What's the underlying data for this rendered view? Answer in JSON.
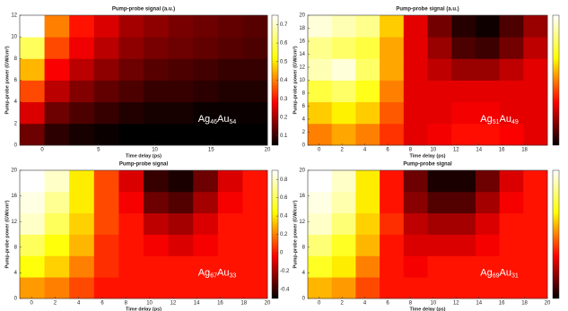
{
  "chart_data": [
    {
      "type": "heatmap",
      "title": "Pump-probe signal (a.u.)",
      "xlabel": "Time delay (ps)",
      "ylabel": "Pump-probe power (GW/cm²)",
      "xlim": [
        -2,
        20
      ],
      "ylim": [
        0,
        12
      ],
      "xticks": [
        0,
        5,
        10,
        15,
        20
      ],
      "yticks": [
        0,
        2,
        4,
        6,
        8,
        10,
        12
      ],
      "zlim": [
        0.05,
        0.75
      ],
      "zticks": [
        0.1,
        0.2,
        0.3,
        0.4,
        0.5,
        0.6,
        0.7
      ],
      "colormap": "hot",
      "annotation": [
        "Ag",
        "46",
        "Au",
        "54"
      ],
      "z": [
        [
          0.15,
          0.09,
          0.07,
          0.06,
          0.05,
          0.05,
          0.05,
          0.05,
          0.05,
          0.05
        ],
        [
          0.25,
          0.15,
          0.12,
          0.1,
          0.08,
          0.07,
          0.07,
          0.06,
          0.06,
          0.06
        ],
        [
          0.35,
          0.22,
          0.17,
          0.14,
          0.12,
          0.1,
          0.1,
          0.09,
          0.08,
          0.08
        ],
        [
          0.45,
          0.28,
          0.22,
          0.18,
          0.15,
          0.13,
          0.12,
          0.11,
          0.1,
          0.1
        ],
        [
          0.6,
          0.35,
          0.27,
          0.22,
          0.18,
          0.16,
          0.15,
          0.14,
          0.13,
          0.12
        ],
        [
          0.75,
          0.4,
          0.3,
          0.25,
          0.2,
          0.18,
          0.16,
          0.15,
          0.14,
          0.13
        ]
      ]
    },
    {
      "type": "heatmap",
      "title": "Pump-probe signal (a.u.)",
      "xlabel": "Time delay (ps)",
      "ylabel": "Pump-probe power (GW/cm²)",
      "xlim": [
        -1,
        20
      ],
      "ylim": [
        0,
        20
      ],
      "xticks": [
        0,
        2,
        4,
        6,
        8,
        10,
        12,
        14,
        16,
        18
      ],
      "yticks": [
        0,
        2,
        4,
        6,
        8,
        10,
        12,
        14,
        16,
        18,
        20
      ],
      "zlim": [
        0,
        1
      ],
      "colormap": "hot",
      "annotation": [
        "Ag",
        "51",
        "Au",
        "49"
      ],
      "z": [
        [
          0.5,
          0.55,
          0.5,
          0.4,
          0.3,
          0.32,
          0.35,
          0.35,
          0.33,
          0.3
        ],
        [
          0.6,
          0.65,
          0.6,
          0.45,
          0.3,
          0.3,
          0.32,
          0.32,
          0.3,
          0.3
        ],
        [
          0.75,
          0.8,
          0.7,
          0.5,
          0.3,
          0.3,
          0.3,
          0.3,
          0.3,
          0.3
        ],
        [
          0.9,
          0.95,
          0.8,
          0.55,
          0.3,
          0.25,
          0.2,
          0.2,
          0.25,
          0.3
        ],
        [
          0.85,
          0.8,
          0.75,
          0.55,
          0.3,
          0.2,
          0.1,
          0.08,
          0.15,
          0.25
        ],
        [
          0.95,
          0.9,
          0.85,
          0.6,
          0.3,
          0.15,
          0.05,
          0.02,
          0.1,
          0.2
        ]
      ]
    },
    {
      "type": "heatmap",
      "title": "Pump-probe signal",
      "xlabel": "Time delay (ps)",
      "ylabel": "Pump-probe power (GW/cm²)",
      "xlim": [
        -1,
        20
      ],
      "ylim": [
        0,
        20
      ],
      "xticks": [
        0,
        2,
        4,
        6,
        8,
        10,
        12,
        14,
        16,
        18,
        20
      ],
      "yticks": [
        0,
        4,
        8,
        12,
        16,
        20
      ],
      "zlim": [
        -0.5,
        0.9
      ],
      "zticks": [
        -0.4,
        -0.2,
        0,
        0.2,
        0.4,
        0.6,
        0.8
      ],
      "colormap": "hot",
      "annotation": [
        "Ag",
        "67",
        "Au",
        "33"
      ],
      "z": [
        [
          0.25,
          0.2,
          0.1,
          0,
          0,
          0,
          0,
          0,
          0,
          0
        ],
        [
          0.45,
          0.35,
          0.2,
          0.05,
          0,
          0,
          0,
          0,
          0,
          0
        ],
        [
          0.6,
          0.45,
          0.3,
          0.05,
          0,
          -0.05,
          -0.1,
          -0.05,
          0,
          0
        ],
        [
          0.8,
          0.6,
          0.35,
          0.1,
          0,
          -0.15,
          -0.2,
          -0.1,
          0,
          0
        ],
        [
          0.85,
          0.7,
          0.4,
          0.1,
          -0.05,
          -0.3,
          -0.35,
          -0.2,
          -0.05,
          0
        ],
        [
          0.9,
          0.8,
          0.4,
          0.1,
          -0.1,
          -0.4,
          -0.45,
          -0.3,
          -0.1,
          0
        ]
      ]
    },
    {
      "type": "heatmap",
      "title": "Pump-probe signal",
      "xlabel": "Time delay (ps)",
      "ylabel": "Pump-probe power (GW/cm²)",
      "xlim": [
        -1,
        20
      ],
      "ylim": [
        0,
        20
      ],
      "xticks": [
        0,
        2,
        4,
        6,
        8,
        10,
        12,
        14,
        16,
        18,
        20
      ],
      "yticks": [
        0,
        4,
        8,
        12,
        16,
        20
      ],
      "zlim": [
        -0.5,
        0.9
      ],
      "colormap": "hot",
      "annotation": [
        "Ag",
        "69",
        "Au",
        "31"
      ],
      "z": [
        [
          0.3,
          0.25,
          0.1,
          0,
          0,
          0,
          0,
          0,
          0,
          0
        ],
        [
          0.5,
          0.4,
          0.2,
          0,
          -0.05,
          0,
          0,
          0,
          0,
          0
        ],
        [
          0.65,
          0.5,
          0.3,
          0,
          -0.1,
          -0.1,
          -0.1,
          -0.05,
          0,
          0
        ],
        [
          0.8,
          0.65,
          0.35,
          0.05,
          -0.15,
          -0.2,
          -0.2,
          -0.1,
          0,
          0
        ],
        [
          0.85,
          0.75,
          0.4,
          0,
          -0.25,
          -0.35,
          -0.35,
          -0.2,
          -0.05,
          0
        ],
        [
          0.9,
          0.8,
          0.4,
          0,
          -0.3,
          -0.45,
          -0.45,
          -0.3,
          -0.1,
          0
        ]
      ]
    }
  ]
}
